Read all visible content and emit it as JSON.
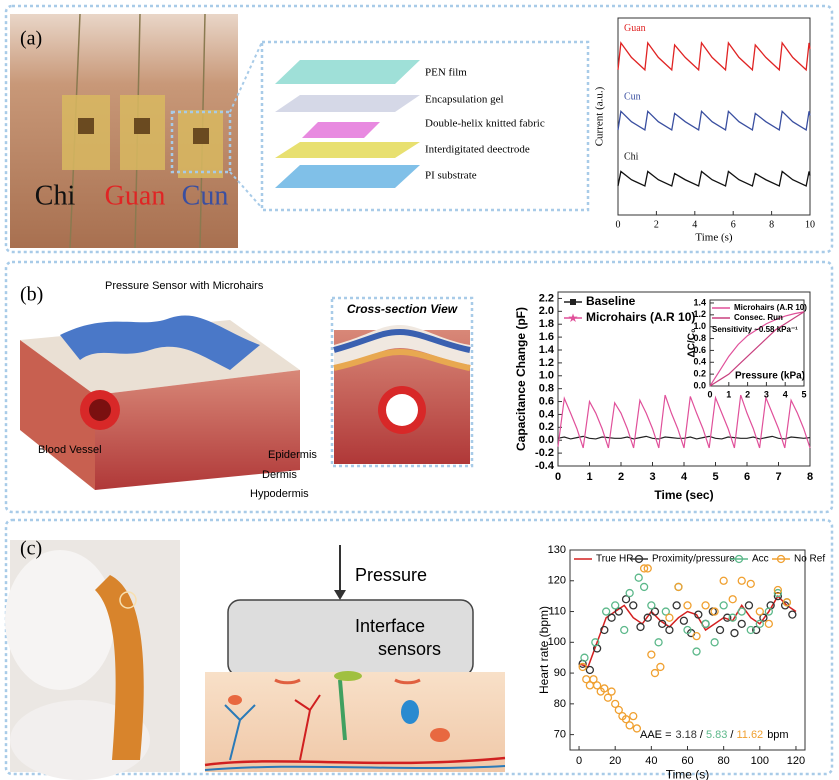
{
  "panels": [
    {
      "label": "(a)",
      "photo_labels": [
        "Chi",
        "Guan",
        "Cun"
      ],
      "layers": [
        "PEN film",
        "Encapsulation gel",
        "Double-helix knitted fabric",
        "Interdigitated deectrode",
        "PI substrate"
      ],
      "chart": {
        "type": "line",
        "x_label": "Time (s)",
        "y_label": "Current (a.u.)",
        "xlim": [
          0,
          10
        ],
        "xticks": [
          0,
          2,
          4,
          6,
          8,
          10
        ],
        "ylim": [
          0,
          9.5
        ],
        "x": [
          0,
          0.15,
          0.7,
          1.4,
          1.55,
          2.1,
          2.8,
          2.95,
          3.5,
          4.2,
          4.35,
          4.9,
          5.6,
          5.75,
          6.3,
          7,
          7.15,
          7.7,
          8.4,
          8.55,
          9.1,
          9.8,
          9.95,
          10
        ],
        "series": [
          {
            "name": "Guan",
            "color": "#e02424",
            "values": [
              7.0,
              8.3,
              7.6,
              7.0,
              8.3,
              7.6,
              7.0,
              8.2,
              7.6,
              7.0,
              8.3,
              7.6,
              7.0,
              8.3,
              7.6,
              7.0,
              8.2,
              7.6,
              7.0,
              8.3,
              7.6,
              7.0,
              8.3,
              8.0
            ]
          },
          {
            "name": "Cun",
            "color": "#3a4fa0",
            "values": [
              4.1,
              5.0,
              4.5,
              4.1,
              5.0,
              4.5,
              4.1,
              4.9,
              4.5,
              4.1,
              5.0,
              4.5,
              4.1,
              5.0,
              4.5,
              4.1,
              4.9,
              4.5,
              4.1,
              5.0,
              4.5,
              4.1,
              5.0,
              4.8
            ]
          },
          {
            "name": "Chi",
            "color": "#111111",
            "values": [
              1.4,
              2.1,
              1.7,
              1.4,
              2.1,
              1.7,
              1.4,
              2.0,
              1.7,
              1.4,
              2.1,
              1.7,
              1.4,
              2.1,
              1.7,
              1.4,
              2.0,
              1.7,
              1.4,
              2.1,
              1.7,
              1.4,
              2.1,
              1.9
            ]
          }
        ]
      }
    },
    {
      "label": "(b)",
      "illustration": {
        "sensor": "Pressure Sensor with Microhairs",
        "section": "Cross-section View",
        "vessel": "Blood Vessel",
        "epidermis": "Epidermis",
        "dermis": "Dermis",
        "hypodermis": "Hypodermis"
      },
      "chart": {
        "type": "line",
        "x_label": "Time (sec)",
        "y_label": "Capacitance Change (pF)",
        "xlim": [
          0,
          8
        ],
        "xticks": [
          0,
          1,
          2,
          3,
          4,
          5,
          6,
          7,
          8
        ],
        "ylim": [
          -0.4,
          2.3
        ],
        "yticks": [
          -0.4,
          -0.2,
          {
            "value": 0,
            "label": "0.0"
          },
          0.2,
          0.4,
          0.6,
          0.8,
          {
            "value": 1,
            "label": "1.0"
          },
          1.2,
          1.4,
          1.6,
          1.8,
          {
            "value": 2,
            "label": "2.0"
          },
          2.2
        ],
        "x": [
          0,
          0.2,
          0.4,
          0.6,
          0.8,
          1,
          1.2,
          1.4,
          1.6,
          1.8,
          2,
          2.2,
          2.4,
          2.6,
          2.8,
          3,
          3.2,
          3.4,
          3.6,
          3.8,
          4,
          4.2,
          4.4,
          4.6,
          4.8,
          5,
          5.2,
          5.4,
          5.6,
          5.8,
          6,
          6.2,
          6.4,
          6.6,
          6.8,
          7,
          7.2,
          7.4,
          7.6,
          7.8,
          8
        ],
        "series": [
          {
            "name": "Baseline",
            "color": "#222222",
            "values": [
              0.03,
              0.05,
              0.02,
              0.04,
              0.06,
              0.03,
              0.02,
              0.05,
              0.04,
              0.03,
              0.03,
              0.05,
              0.02,
              0.04,
              0.06,
              0.03,
              0.02,
              0.05,
              0.04,
              0.03,
              0.03,
              0.05,
              0.02,
              0.04,
              0.06,
              0.03,
              0.02,
              0.05,
              0.04,
              0.03,
              0.03,
              0.05,
              0.02,
              0.04,
              0.06,
              0.03,
              0.02,
              0.05,
              0.04,
              0.03,
              0.04
            ]
          },
          {
            "name": "Microhairs (A.R 10)",
            "color": "#e0509a",
            "values": [
              -0.1,
              0.65,
              0.42,
              0.18,
              -0.12,
              0.6,
              0.42,
              0.18,
              -0.12,
              0.58,
              0.42,
              0.18,
              -0.12,
              0.62,
              0.42,
              0.18,
              -0.12,
              0.7,
              0.42,
              0.18,
              -0.12,
              0.68,
              0.42,
              0.18,
              -0.12,
              0.66,
              0.42,
              0.18,
              -0.12,
              0.7,
              0.42,
              0.18,
              -0.12,
              0.66,
              0.42,
              0.18,
              -0.12,
              0.62,
              0.42,
              0.18,
              -0.12
            ]
          }
        ]
      },
      "inset": {
        "type": "line",
        "x_label": "Pressure (kPa)",
        "y_label": "ΔC/C₀",
        "annotation": "Sensitivity ~0.58 kPa⁻¹",
        "xlim": [
          0,
          5
        ],
        "xticks": [
          0,
          1,
          2,
          3,
          4,
          5
        ],
        "ylim": [
          0,
          1.45
        ],
        "yticks": [
          {
            "value": 0,
            "label": "0.0"
          },
          0.2,
          0.4,
          0.6,
          0.8,
          {
            "value": 1,
            "label": "1.0"
          },
          1.2,
          1.4
        ],
        "x": [
          0,
          0.5,
          1,
          1.5,
          2,
          2.5,
          3,
          3.5,
          4,
          4.5,
          5
        ],
        "series": [
          {
            "name": "Microhairs (A.R 10)",
            "color": "#e0509a",
            "values": [
              0,
              0.25,
              0.5,
              0.7,
              0.85,
              0.95,
              1.05,
              1.12,
              1.18,
              1.22,
              1.25
            ]
          },
          {
            "name": "Consec. Run",
            "color": "#c8407f",
            "values": [
              0,
              0.1,
              0.2,
              0.35,
              0.5,
              0.65,
              0.8,
              0.95,
              1.05,
              1.15,
              1.25
            ]
          }
        ]
      }
    },
    {
      "label": "(c)",
      "diagram": {
        "force": "Pressure",
        "sensors": [
          "Interface",
          "sensors"
        ]
      },
      "chart": {
        "type": "scatter",
        "x_label": "Time (s)",
        "y_label": "Heart rate (bpm)",
        "xlim": [
          -5,
          125
        ],
        "xticks": [
          0,
          20,
          40,
          60,
          80,
          100,
          120
        ],
        "ylim": [
          65,
          130
        ],
        "yticks": [
          70,
          80,
          90,
          100,
          110,
          120,
          130
        ],
        "aae": {
          "prefix": "AAE =",
          "values": [
            "3.18",
            "5.83",
            "11.62"
          ],
          "separator": "/",
          "unit": "bpm"
        },
        "series": [
          {
            "name": "True HR",
            "type": "line",
            "color": "#d42020",
            "x": [
              0,
              5,
              10,
              15,
              20,
              25,
              30,
              35,
              40,
              45,
              50,
              55,
              60,
              65,
              70,
              75,
              80,
              85,
              90,
              95,
              100,
              105,
              110,
              115,
              120
            ],
            "values": [
              93,
              92,
              100,
              108,
              110,
              112,
              108,
              106,
              110,
              107,
              105,
              108,
              110,
              109,
              104,
              106,
              108,
              107,
              112,
              108,
              106,
              110,
              115,
              112,
              110
            ]
          },
          {
            "name": "Proximity/pressure",
            "color": "#333333",
            "x": [
              2,
              6,
              10,
              14,
              18,
              22,
              26,
              30,
              34,
              38,
              42,
              46,
              50,
              54,
              58,
              62,
              66,
              70,
              74,
              78,
              82,
              86,
              90,
              94,
              98,
              102,
              106,
              110,
              114,
              118
            ],
            "values": [
              93,
              91,
              98,
              104,
              108,
              110,
              114,
              112,
              105,
              108,
              110,
              106,
              104,
              112,
              107,
              103,
              109,
              106,
              110,
              104,
              108,
              103,
              106,
              112,
              104,
              108,
              112,
              115,
              112,
              109
            ]
          },
          {
            "name": "Acc",
            "color": "#5cb88a",
            "x": [
              3,
              9,
              15,
              20,
              25,
              28,
              33,
              36,
              40,
              44,
              48,
              55,
              60,
              65,
              70,
              75,
              80,
              85,
              90,
              95,
              100,
              105,
              110,
              115
            ],
            "values": [
              95,
              100,
              110,
              112,
              104,
              116,
              121,
              118,
              112,
              100,
              110,
              118,
              104,
              97,
              106,
              100,
              112,
              108,
              110,
              104,
              106,
              110,
              116,
              113
            ]
          },
          {
            "name": "No Ref",
            "color": "#f0a030",
            "x": [
              2,
              4,
              6,
              8,
              10,
              12,
              14,
              16,
              18,
              20,
              22,
              24,
              26,
              28,
              30,
              32,
              36,
              38,
              40,
              42,
              45,
              50,
              55,
              60,
              65,
              70,
              75,
              80,
              85,
              90,
              95,
              100,
              105,
              110,
              115
            ],
            "values": [
              92,
              88,
              86,
              88,
              86,
              84,
              85,
              82,
              84,
              80,
              78,
              76,
              75,
              73,
              76,
              72,
              124,
              124,
              96,
              90,
              92,
              108,
              118,
              112,
              102,
              112,
              110,
              120,
              114,
              120,
              119,
              110,
              106,
              117,
              113
            ]
          }
        ]
      }
    }
  ]
}
